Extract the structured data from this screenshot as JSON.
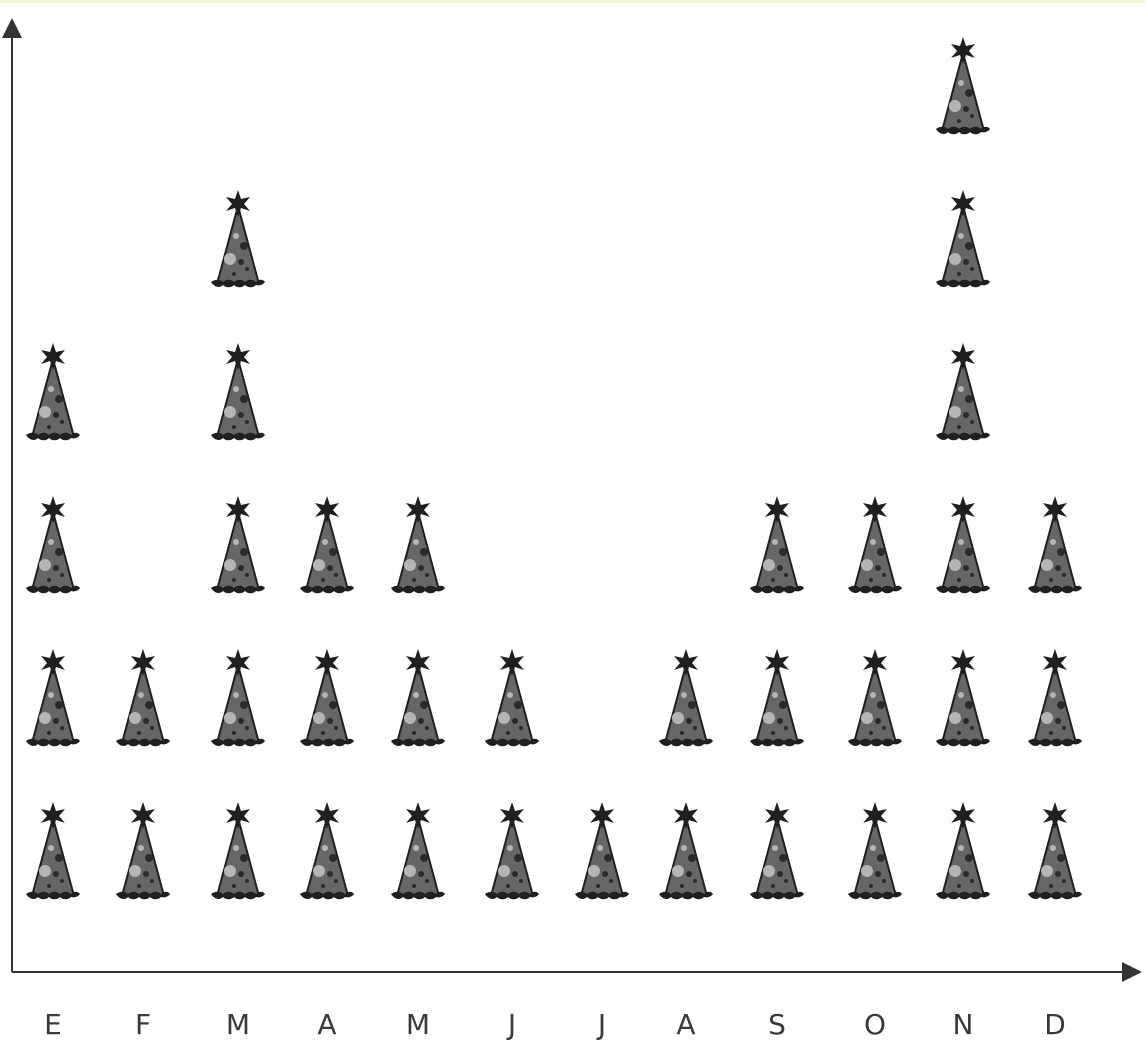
{
  "chart_data": {
    "type": "bar",
    "title": "",
    "xlabel": "",
    "ylabel": "",
    "categories": [
      "E",
      "F",
      "M",
      "A",
      "M",
      "J",
      "J",
      "A",
      "S",
      "O",
      "N",
      "D"
    ],
    "values": [
      4,
      2,
      5,
      3,
      3,
      2,
      1,
      2,
      3,
      3,
      6,
      3
    ],
    "ylim": [
      0,
      6
    ],
    "grid": false,
    "legend": "none",
    "marker_icon": "party-hat-icon"
  },
  "colors": {
    "hat_fill": "#666666",
    "hat_outline": "#1f1f1f",
    "hat_dots": "#2a2a2a",
    "hat_spots": "#b5b5b5",
    "axis": "#333333",
    "top_strip": "#f3f7d6"
  }
}
